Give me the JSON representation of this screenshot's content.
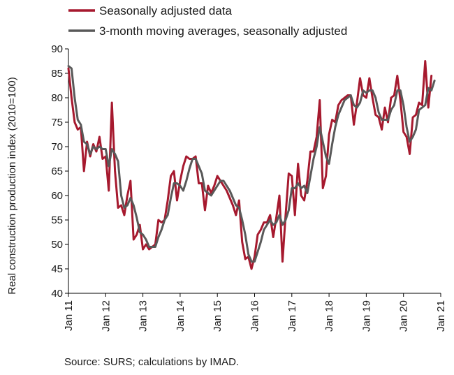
{
  "chart_data": {
    "type": "line",
    "title": "",
    "xlabel": "",
    "ylabel": "Real construction production index (2010=100)",
    "ylim": [
      40,
      90
    ],
    "yticks": [
      40,
      45,
      50,
      55,
      60,
      65,
      70,
      75,
      80,
      85,
      90
    ],
    "xticks": [
      {
        "x": 0,
        "label": "Jan 11"
      },
      {
        "x": 12,
        "label": "Jan 12"
      },
      {
        "x": 24,
        "label": "Jan 13"
      },
      {
        "x": 36,
        "label": "Jan 14"
      },
      {
        "x": 48,
        "label": "Jan 15"
      },
      {
        "x": 60,
        "label": "Jan 16"
      },
      {
        "x": 72,
        "label": "Jan 17"
      },
      {
        "x": 84,
        "label": "Jan 18"
      },
      {
        "x": 96,
        "label": "Jan 19"
      },
      {
        "x": 108,
        "label": "Jan 20"
      },
      {
        "x": 120,
        "label": "Jan 21"
      }
    ],
    "xlim": [
      0,
      120
    ],
    "grid": false,
    "legend_position": "top-left",
    "series": [
      {
        "name": "Seasonally adjusted data",
        "color": "#a6192e",
        "values": [
          86,
          80,
          75,
          73.5,
          74,
          65,
          71,
          68,
          70.5,
          69,
          72,
          67.5,
          68,
          61,
          79,
          65,
          57.5,
          58,
          56,
          60,
          63,
          51,
          52,
          54,
          49,
          50,
          49,
          49.5,
          50,
          55,
          54.5,
          55,
          59,
          64,
          65,
          59,
          63,
          66,
          68,
          67.5,
          67.5,
          68,
          62.5,
          62.5,
          57,
          62,
          60.5,
          62,
          64,
          63,
          62,
          61,
          59.5,
          58,
          56,
          59,
          50.5,
          47,
          47.5,
          45,
          47.5,
          52,
          53,
          54.5,
          54.5,
          56,
          51.5,
          55.5,
          60,
          46.5,
          56,
          64.5,
          64,
          56,
          66.5,
          60,
          59,
          63,
          69,
          69,
          72,
          79.5,
          61.5,
          64,
          72.5,
          75.5,
          75,
          78.5,
          79.5,
          80,
          80.5,
          80.5,
          74.5,
          79,
          84,
          80.5,
          80,
          84,
          80,
          76.5,
          76,
          73.5,
          78,
          75,
          80,
          80.5,
          84.5,
          79.5,
          73,
          72,
          68.5,
          76,
          76.5,
          79,
          78.5,
          87.5,
          78,
          84.5
        ]
      },
      {
        "name": "3-month moving averages, seasonally adjusted",
        "color": "#595959",
        "values": [
          86.5,
          86,
          80,
          75.5,
          74.5,
          71,
          70.5,
          68.5,
          70,
          69.5,
          70,
          69.5,
          69.5,
          66,
          69.5,
          68.5,
          67,
          60,
          57.5,
          58,
          59.5,
          58,
          55.5,
          52.5,
          52,
          51,
          49.5,
          49.5,
          49.5,
          51.5,
          53,
          55,
          56,
          59.5,
          62.5,
          62.5,
          62,
          61,
          63,
          65.5,
          67.5,
          67.5,
          66,
          64.5,
          61,
          60.5,
          60,
          61,
          62,
          63,
          63,
          62,
          61,
          59.5,
          58,
          57.5,
          55,
          52,
          48,
          46.5,
          46.5,
          48.5,
          50.5,
          53,
          54,
          55,
          54,
          54.5,
          56,
          54,
          55,
          57,
          61.5,
          61.5,
          62.5,
          61.5,
          62,
          60.5,
          64,
          67.5,
          70,
          74,
          71,
          68,
          66.5,
          70.5,
          74,
          76.5,
          78,
          79.5,
          80,
          80.5,
          78.5,
          78,
          79,
          81.5,
          81,
          81.5,
          81.5,
          80,
          77,
          75.5,
          75.5,
          75.5,
          77.5,
          78.5,
          81.5,
          81.5,
          78.5,
          74,
          71,
          72,
          73.5,
          77.5,
          78,
          78.5,
          82,
          81.5,
          83.5
        ]
      }
    ],
    "note": "Source: SURS; calculations by IMAD."
  }
}
